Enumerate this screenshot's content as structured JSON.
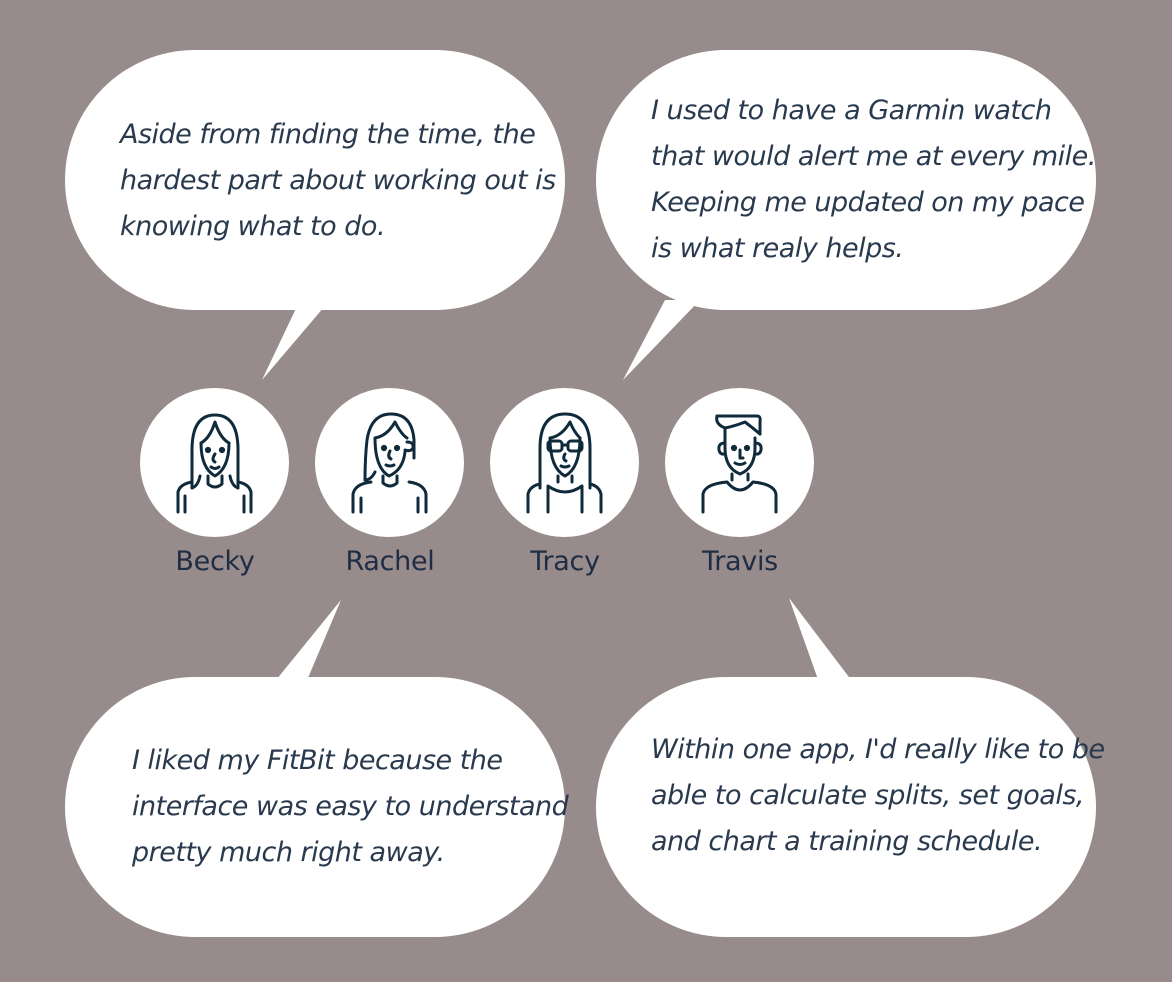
{
  "quotes": {
    "top_left": [
      "Aside from finding the time, the",
      "hardest part about working out is",
      "knowing what to do."
    ],
    "top_right": [
      "I used to have a Garmin watch",
      "that would alert me at every mile.",
      "Keeping me updated on my pace",
      "is what realy helps."
    ],
    "bottom_left": [
      "I liked my FitBit because the",
      "interface was easy to understand",
      "pretty much right away."
    ],
    "bottom_right": [
      "Within one app, I'd really like to be",
      "able to calculate splits, set goals,",
      "and chart a training schedule."
    ]
  },
  "personas": [
    {
      "name": "Becky",
      "icon": "woman-long-hair-icon"
    },
    {
      "name": "Rachel",
      "icon": "woman-short-hair-icon"
    },
    {
      "name": "Tracy",
      "icon": "woman-glasses-icon"
    },
    {
      "name": "Travis",
      "icon": "man-icon"
    }
  ],
  "colors": {
    "background": "#978b8b",
    "bubble": "#ffffff",
    "text": "#2a3a4e",
    "icon_stroke": "#0f2a3a"
  }
}
